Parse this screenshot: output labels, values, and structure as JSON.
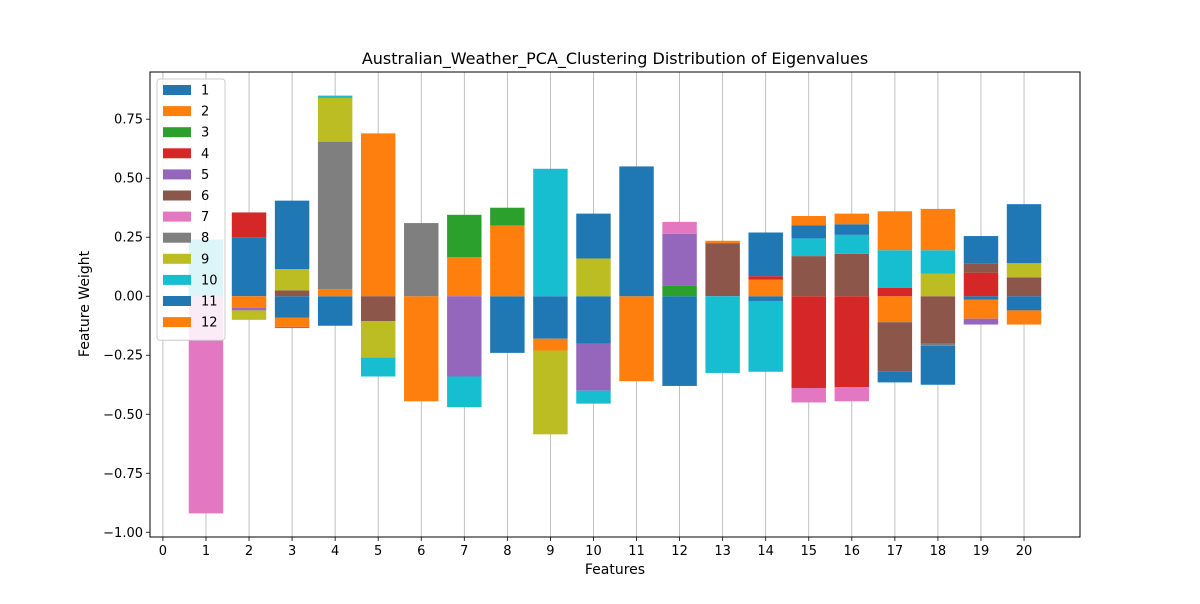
{
  "chart_data": {
    "type": "bar",
    "stacked": true,
    "title": "Australian_Weather_PCA_Clustering Distribution of Eigenvalues",
    "xlabel": "Features",
    "ylabel": "Feature Weight",
    "xlim": [
      -0.3,
      21.3
    ],
    "ylim": [
      -1.02,
      0.95
    ],
    "x_ticks": [
      0,
      1,
      2,
      3,
      4,
      5,
      6,
      7,
      8,
      9,
      10,
      11,
      12,
      13,
      14,
      15,
      16,
      17,
      18,
      19,
      20
    ],
    "y_ticks": [
      -1.0,
      -0.75,
      -0.5,
      -0.25,
      0.0,
      0.25,
      0.5,
      0.75
    ],
    "y_tick_labels": [
      "−1.00",
      "−0.75",
      "−0.50",
      "−0.25",
      "0.00",
      "0.25",
      "0.50",
      "0.75"
    ],
    "grid": "vertical lines at x ticks",
    "legend_position": "upper-left",
    "bar_width": 0.8,
    "categories": [
      1,
      2,
      3,
      4,
      5,
      6,
      7,
      8,
      9,
      10,
      11,
      12,
      13,
      14,
      15,
      16,
      17,
      18,
      19,
      20
    ],
    "series": [
      {
        "name": "1",
        "color": "#1f77b4",
        "values": [
          0,
          0.25,
          -0.09,
          -0.125,
          0,
          0,
          0,
          -0.24,
          -0.18,
          -0.2,
          0,
          -0.38,
          0,
          -0.02,
          0,
          0,
          0,
          0,
          -0.015,
          -0.06
        ]
      },
      {
        "name": "2",
        "color": "#ff7f0e",
        "values": [
          0,
          -0.05,
          -0.04,
          0.03,
          0.69,
          -0.445,
          0.165,
          0.3,
          -0.05,
          0,
          -0.36,
          0,
          0,
          0.07,
          0,
          0,
          -0.11,
          0,
          -0.08,
          -0.06
        ]
      },
      {
        "name": "3",
        "color": "#2ca02c",
        "values": [
          0,
          0,
          0,
          0,
          0,
          0,
          0.18,
          0.075,
          0,
          0,
          0,
          0.045,
          0,
          0,
          0,
          0,
          0,
          0,
          0,
          0
        ]
      },
      {
        "name": "4",
        "color": "#d62728",
        "values": [
          0,
          0.105,
          0,
          0,
          0,
          0,
          0,
          0,
          0,
          0,
          0,
          0,
          0,
          0.015,
          -0.39,
          -0.385,
          0.035,
          0,
          0.1,
          0
        ]
      },
      {
        "name": "5",
        "color": "#9467bd",
        "values": [
          0,
          -0.01,
          -0.005,
          0,
          0,
          0,
          -0.34,
          0,
          0,
          -0.2,
          0,
          0.22,
          0,
          0,
          0,
          0,
          0,
          0,
          -0.025,
          0
        ]
      },
      {
        "name": "6",
        "color": "#8c564b",
        "values": [
          0,
          0,
          0.025,
          0,
          -0.105,
          0,
          0,
          0,
          0,
          0,
          0,
          0,
          0.225,
          0,
          0.17,
          0.18,
          -0.21,
          -0.2,
          0.04,
          0.08
        ]
      },
      {
        "name": "7",
        "color": "#e377c2",
        "values": [
          -0.92,
          0,
          0,
          0,
          0,
          0,
          0,
          0,
          0,
          0,
          0,
          0.05,
          0,
          0,
          -0.06,
          -0.06,
          0,
          0,
          0,
          0
        ]
      },
      {
        "name": "8",
        "color": "#7f7f7f",
        "values": [
          0,
          0,
          0,
          0.625,
          0,
          0.31,
          0,
          0,
          0,
          0,
          0,
          0,
          0,
          0,
          0,
          0,
          0,
          -0.01,
          0,
          0
        ]
      },
      {
        "name": "9",
        "color": "#bcbd22",
        "values": [
          0,
          -0.04,
          0.09,
          0.185,
          -0.155,
          0,
          0,
          0,
          -0.355,
          0.16,
          0,
          0,
          0,
          0,
          0,
          0,
          0,
          0.095,
          0,
          0.06
        ]
      },
      {
        "name": "10",
        "color": "#17becf",
        "values": [
          0.24,
          0,
          0,
          0.01,
          -0.08,
          0,
          -0.13,
          0,
          0.54,
          -0.055,
          0,
          0,
          -0.325,
          -0.3,
          0.075,
          0.08,
          0.16,
          0.1,
          0,
          0
        ]
      },
      {
        "name": "11",
        "color": "#1f77b4",
        "values": [
          0,
          0,
          0.29,
          0,
          0,
          0,
          0,
          0,
          0,
          0.19,
          0.55,
          0,
          0,
          0.185,
          0.055,
          0.045,
          -0.045,
          -0.165,
          0.115,
          0.25
        ]
      },
      {
        "name": "12",
        "color": "#ff7f0e",
        "values": [
          0,
          0,
          0,
          0,
          0,
          0,
          0,
          0,
          0,
          0,
          0,
          0,
          0.01,
          0,
          0.04,
          0.045,
          0.165,
          0.175,
          0,
          0
        ]
      }
    ]
  }
}
